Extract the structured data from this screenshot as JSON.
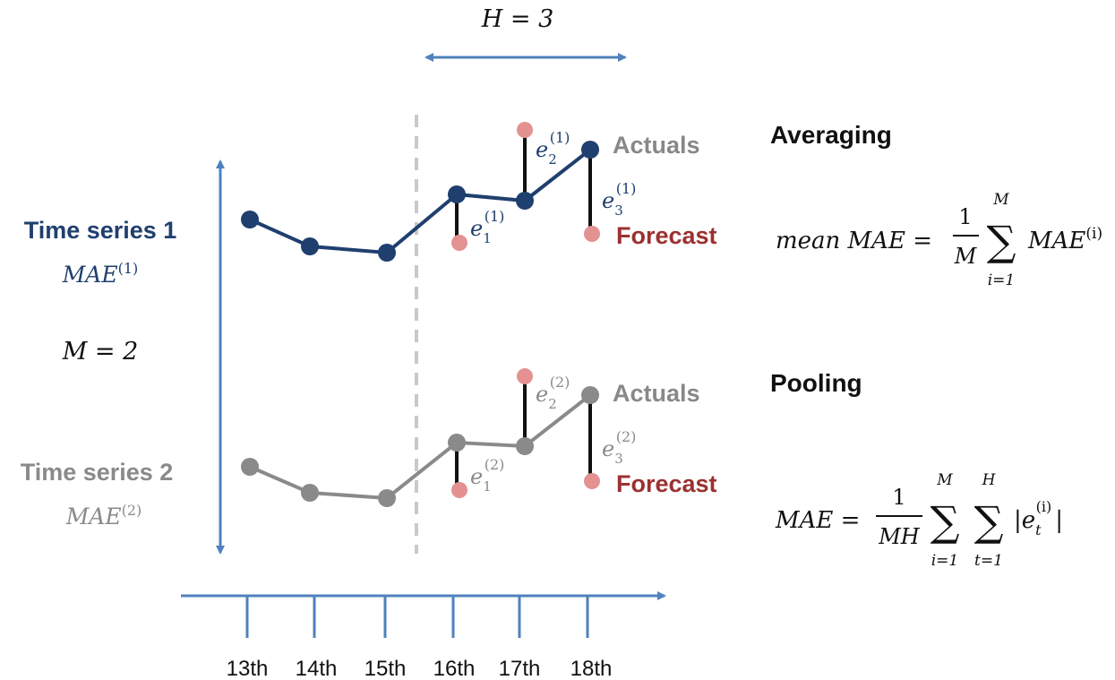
{
  "horizon": {
    "label": "H = 3"
  },
  "series_labels": [
    {
      "name": "Time series 1",
      "mae_label": "MAE",
      "mae_sup": "(1)",
      "color": "#1f3f6e"
    },
    {
      "name": "Time series 2",
      "mae_label": "MAE",
      "mae_sup": "(2)",
      "color": "#8a8a8a"
    }
  ],
  "m_label": "M = 2",
  "axis": {
    "ticks": [
      "13th",
      "14th",
      "15th",
      "16th",
      "17th",
      "18th"
    ],
    "color": "#4f81bd"
  },
  "point_labels": {
    "actuals": "Actuals",
    "forecast": "Forecast",
    "actuals_color": "#888888",
    "forecast_color": "#9b3131",
    "forecast_dot_color": "#e39191"
  },
  "error_labels": [
    {
      "base": "e",
      "sub": "1",
      "sup": "(1)"
    },
    {
      "base": "e",
      "sub": "2",
      "sup": "(1)"
    },
    {
      "base": "e",
      "sub": "3",
      "sup": "(1)"
    },
    {
      "base": "e",
      "sub": "1",
      "sup": "(2)"
    },
    {
      "base": "e",
      "sub": "2",
      "sup": "(2)"
    },
    {
      "base": "e",
      "sub": "3",
      "sup": "(2)"
    }
  ],
  "sections": {
    "averaging": {
      "title": "Averaging",
      "lhs": "mean MAE =",
      "frac_num": "1",
      "frac_den": "M",
      "sum_top": "M",
      "sum_bottom": "i=1",
      "term": "MAE",
      "term_sup": "(i)"
    },
    "pooling": {
      "title": "Pooling",
      "lhs": "MAE =",
      "frac_num": "1",
      "frac_den": "MH",
      "sum1_top": "M",
      "sum1_bottom": "i=1",
      "sum2_top": "H",
      "sum2_bottom": "t=1",
      "term_open": "|e",
      "term_sub": "t",
      "term_sup": "(i)",
      "term_close": "|"
    }
  }
}
